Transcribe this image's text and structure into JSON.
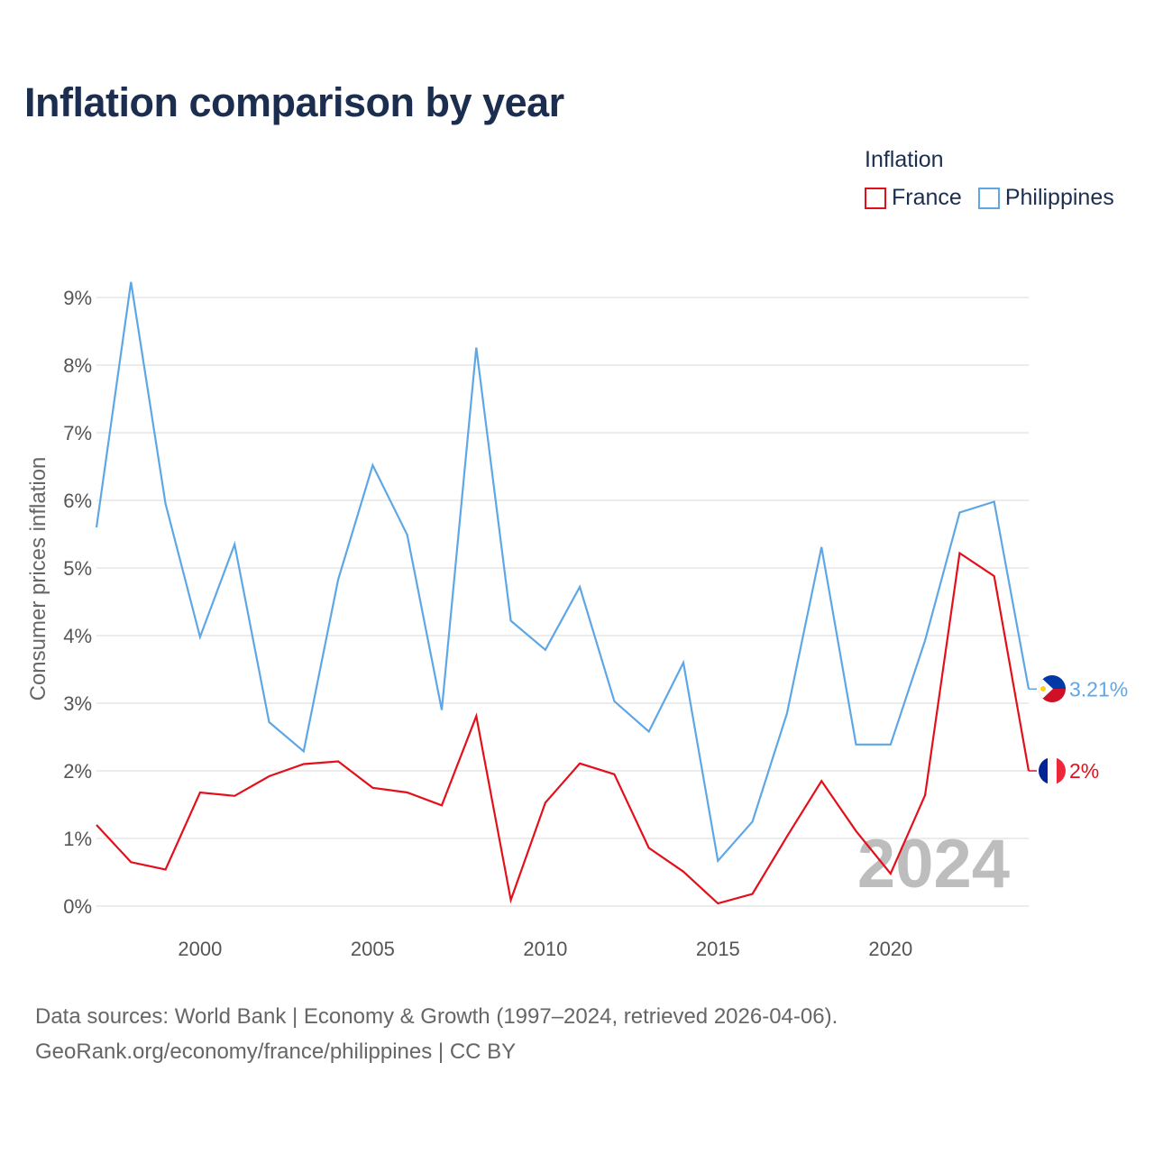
{
  "title": "Inflation comparison by year",
  "legend": {
    "title": "Inflation",
    "items": [
      {
        "label": "France",
        "color": "#e3101b"
      },
      {
        "label": "Philippines",
        "color": "#5ea7e6"
      }
    ]
  },
  "chart_data": {
    "type": "line",
    "ylabel": "Consumer prices inflation",
    "ylim": [
      0,
      9
    ],
    "xlim": [
      1997,
      2024
    ],
    "y_ticks": [
      {
        "value": 0,
        "label": "0%"
      },
      {
        "value": 1,
        "label": "1%"
      },
      {
        "value": 2,
        "label": "2%"
      },
      {
        "value": 3,
        "label": "3%"
      },
      {
        "value": 4,
        "label": "4%"
      },
      {
        "value": 5,
        "label": "5%"
      },
      {
        "value": 6,
        "label": "6%"
      },
      {
        "value": 7,
        "label": "7%"
      },
      {
        "value": 8,
        "label": "8%"
      },
      {
        "value": 9,
        "label": "9%"
      }
    ],
    "x_ticks": [
      {
        "value": 2000,
        "label": "2000"
      },
      {
        "value": 2005,
        "label": "2005"
      },
      {
        "value": 2010,
        "label": "2010"
      },
      {
        "value": 2015,
        "label": "2015"
      },
      {
        "value": 2020,
        "label": "2020"
      }
    ],
    "x": [
      1997,
      1998,
      1999,
      2000,
      2001,
      2002,
      2003,
      2004,
      2005,
      2006,
      2007,
      2008,
      2009,
      2010,
      2011,
      2012,
      2013,
      2014,
      2015,
      2016,
      2017,
      2018,
      2019,
      2020,
      2021,
      2022,
      2023,
      2024
    ],
    "series": [
      {
        "name": "Philippines",
        "color": "#5ea7e6",
        "values": [
          5.6,
          9.23,
          5.95,
          3.98,
          5.35,
          2.72,
          2.29,
          4.83,
          6.52,
          5.49,
          2.9,
          8.26,
          4.22,
          3.79,
          4.72,
          3.03,
          2.58,
          3.6,
          0.67,
          1.25,
          2.85,
          5.31,
          2.39,
          2.39,
          3.93,
          5.82,
          5.98,
          3.21
        ],
        "end_label": "3.21%"
      },
      {
        "name": "France",
        "color": "#e3101b",
        "values": [
          1.2,
          0.65,
          0.54,
          1.68,
          1.63,
          1.92,
          2.1,
          2.14,
          1.75,
          1.68,
          1.49,
          2.81,
          0.09,
          1.53,
          2.11,
          1.95,
          0.86,
          0.51,
          0.04,
          0.18,
          1.03,
          1.85,
          1.11,
          0.48,
          1.64,
          5.22,
          4.88,
          2.0
        ],
        "end_label": "2%"
      }
    ],
    "year_marker": "2024"
  },
  "source": {
    "line1": "Data sources: World Bank | Economy & Growth (1997–2024, retrieved 2026-04-06).",
    "line2": "GeoRank.org/economy/france/philippines | CC BY"
  }
}
